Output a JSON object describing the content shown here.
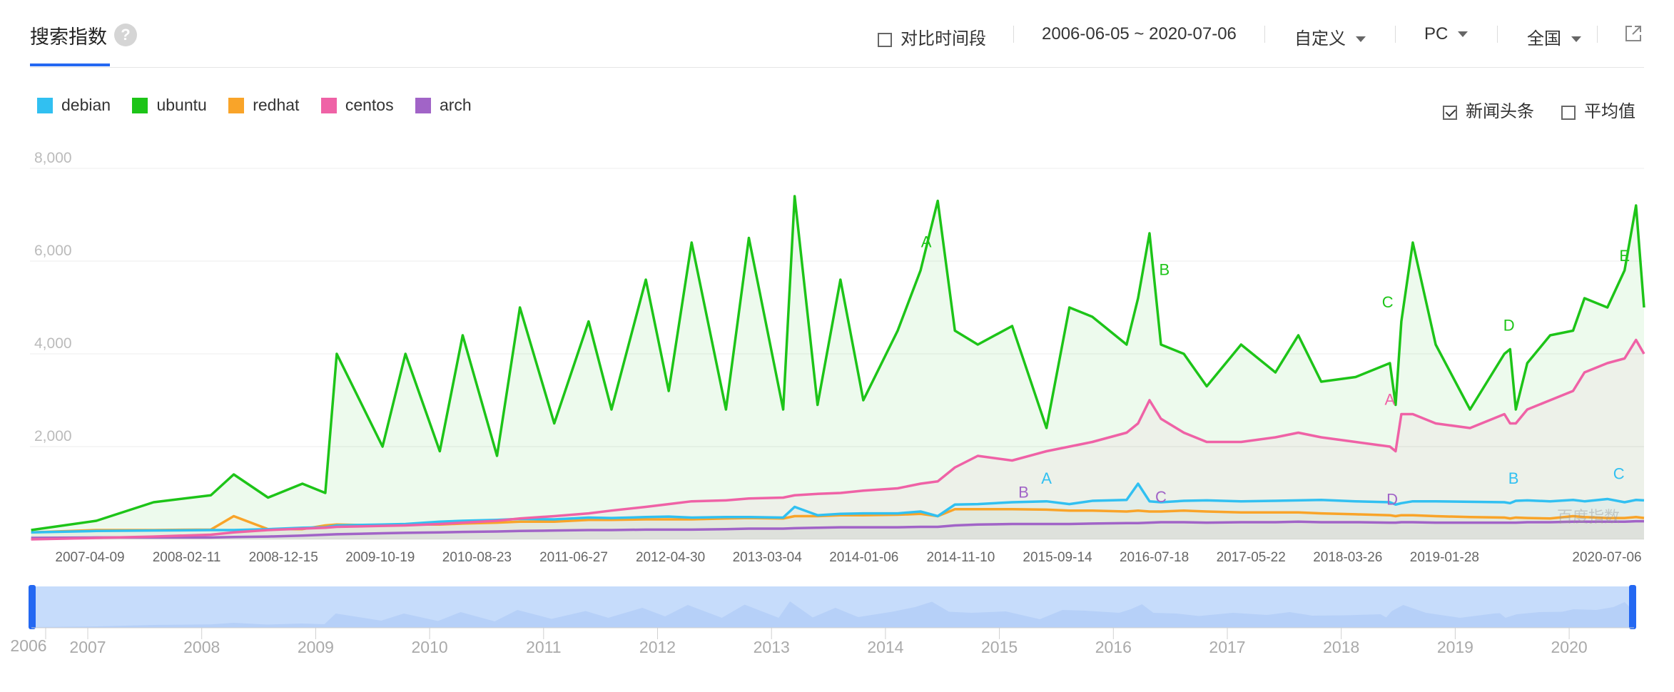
{
  "header": {
    "title": "搜索指数",
    "help_glyph": "?",
    "compare_label": "对比时间段",
    "date_range": "2006-06-05 ~ 2020-07-06",
    "period_select": "自定义",
    "device_select": "PC",
    "region_select": "全国"
  },
  "options": {
    "news_label": "新闻头条",
    "news_checked": true,
    "average_label": "平均值",
    "average_checked": false
  },
  "watermark": "百度指数",
  "chart_data": {
    "type": "line",
    "ylim": [
      0,
      8000
    ],
    "yticks": [
      0,
      2000,
      4000,
      6000,
      8000
    ],
    "ytick_labels": [
      "",
      "2,000",
      "4,000",
      "6,000",
      "8,000"
    ],
    "x_tick_labels": [
      "2007-04-09",
      "2008-02-11",
      "2008-12-15",
      "2009-10-19",
      "2010-08-23",
      "2011-06-27",
      "2012-04-30",
      "2013-03-04",
      "2014-01-06",
      "2014-11-10",
      "2015-09-14",
      "2016-07-18",
      "2017-05-22",
      "2018-03-26",
      "2019-01-28",
      "2020-07-06"
    ],
    "x": [
      2006.43,
      2007.0,
      2007.5,
      2008.0,
      2008.2,
      2008.5,
      2008.8,
      2009.0,
      2009.1,
      2009.5,
      2009.7,
      2010.0,
      2010.2,
      2010.5,
      2010.7,
      2011.0,
      2011.3,
      2011.5,
      2011.8,
      2012.0,
      2012.2,
      2012.5,
      2012.7,
      2013.0,
      2013.1,
      2013.3,
      2013.5,
      2013.7,
      2014.0,
      2014.2,
      2014.35,
      2014.5,
      2014.7,
      2015.0,
      2015.3,
      2015.5,
      2015.7,
      2016.0,
      2016.1,
      2016.2,
      2016.3,
      2016.5,
      2016.7,
      2017.0,
      2017.3,
      2017.5,
      2017.7,
      2018.0,
      2018.3,
      2018.35,
      2018.4,
      2018.5,
      2018.7,
      2019.0,
      2019.3,
      2019.35,
      2019.4,
      2019.5,
      2019.7,
      2019.9,
      2020.0,
      2020.2,
      2020.35,
      2020.45,
      2020.52
    ],
    "series": [
      {
        "name": "debian",
        "color": "#31c0f1",
        "values": [
          150,
          180,
          190,
          200,
          200,
          220,
          250,
          260,
          300,
          320,
          330,
          380,
          400,
          420,
          440,
          430,
          470,
          460,
          480,
          490,
          470,
          480,
          480,
          470,
          700,
          520,
          550,
          560,
          560,
          600,
          500,
          750,
          760,
          800,
          820,
          760,
          830,
          850,
          1200,
          820,
          800,
          830,
          840,
          820,
          830,
          840,
          850,
          820,
          800,
          750,
          780,
          820,
          820,
          810,
          800,
          780,
          830,
          840,
          820,
          850,
          820,
          870,
          800,
          850,
          840
        ]
      },
      {
        "name": "ubuntu",
        "color": "#1dc418",
        "values": [
          200,
          400,
          800,
          950,
          1400,
          900,
          1200,
          1000,
          4000,
          2000,
          4000,
          1900,
          4400,
          1800,
          5000,
          2500,
          4700,
          2800,
          5600,
          3200,
          6400,
          2800,
          6500,
          2800,
          7400,
          2900,
          5600,
          3000,
          4500,
          5800,
          7300,
          4500,
          4200,
          4600,
          2400,
          5000,
          4800,
          4200,
          5200,
          6600,
          4200,
          4000,
          3300,
          4200,
          3600,
          4400,
          3400,
          3500,
          3800,
          2900,
          4700,
          6400,
          4200,
          2800,
          4000,
          4100,
          2800,
          3800,
          4400,
          4500,
          5200,
          5000,
          5800,
          7200,
          5000
        ]
      },
      {
        "name": "redhat",
        "color": "#f9a429",
        "values": [
          150,
          200,
          200,
          210,
          500,
          220,
          220,
          300,
          320,
          300,
          320,
          320,
          340,
          360,
          380,
          380,
          420,
          420,
          430,
          430,
          430,
          450,
          460,
          450,
          500,
          500,
          520,
          520,
          530,
          550,
          500,
          650,
          650,
          650,
          640,
          620,
          620,
          600,
          620,
          600,
          600,
          620,
          600,
          580,
          580,
          580,
          560,
          540,
          520,
          500,
          520,
          520,
          500,
          480,
          470,
          450,
          470,
          460,
          450,
          500,
          480,
          460,
          460,
          480,
          460
        ]
      },
      {
        "name": "centos",
        "color": "#ef62a6",
        "values": [
          0,
          30,
          60,
          100,
          150,
          200,
          230,
          250,
          270,
          290,
          300,
          330,
          360,
          400,
          450,
          500,
          560,
          620,
          700,
          760,
          820,
          840,
          880,
          900,
          950,
          980,
          1000,
          1050,
          1100,
          1200,
          1250,
          1550,
          1800,
          1700,
          1900,
          2000,
          2100,
          2300,
          2500,
          3000,
          2600,
          2300,
          2100,
          2100,
          2200,
          2300,
          2200,
          2100,
          2000,
          1900,
          2700,
          2700,
          2500,
          2400,
          2700,
          2500,
          2500,
          2800,
          3000,
          3200,
          3600,
          3800,
          3900,
          4300,
          4000
        ]
      },
      {
        "name": "arch",
        "color": "#a164c7",
        "values": [
          30,
          40,
          40,
          40,
          50,
          60,
          80,
          100,
          110,
          130,
          140,
          150,
          160,
          170,
          180,
          190,
          200,
          200,
          210,
          210,
          210,
          220,
          230,
          230,
          240,
          250,
          260,
          260,
          260,
          270,
          270,
          300,
          320,
          330,
          330,
          330,
          340,
          350,
          350,
          360,
          370,
          370,
          360,
          370,
          370,
          380,
          370,
          370,
          360,
          360,
          370,
          370,
          360,
          360,
          360,
          360,
          360,
          370,
          370,
          380,
          380,
          380,
          380,
          390,
          390
        ]
      }
    ],
    "annotations": [
      {
        "letter": "A",
        "color": "#1dc418",
        "x": 2014.25,
        "y": 6300
      },
      {
        "letter": "B",
        "color": "#1dc418",
        "x": 2016.33,
        "y": 5700
      },
      {
        "letter": "C",
        "color": "#1dc418",
        "x": 2018.28,
        "y": 5000
      },
      {
        "letter": "D",
        "color": "#1dc418",
        "x": 2019.34,
        "y": 4500
      },
      {
        "letter": "E",
        "color": "#1dc418",
        "x": 2020.35,
        "y": 6000
      },
      {
        "letter": "A",
        "color": "#31c0f1",
        "x": 2015.3,
        "y": 1200
      },
      {
        "letter": "B",
        "color": "#a164c7",
        "x": 2015.1,
        "y": 900
      },
      {
        "letter": "C",
        "color": "#a164c7",
        "x": 2016.3,
        "y": 800
      },
      {
        "letter": "A",
        "color": "#ef62a6",
        "x": 2018.3,
        "y": 2900
      },
      {
        "letter": "D",
        "color": "#a164c7",
        "x": 2018.32,
        "y": 750
      },
      {
        "letter": "B",
        "color": "#31c0f1",
        "x": 2019.38,
        "y": 1200
      },
      {
        "letter": "C",
        "color": "#31c0f1",
        "x": 2020.3,
        "y": 1300
      }
    ],
    "navigator": {
      "year_labels": [
        "2006",
        "2007",
        "2008",
        "2009",
        "2010",
        "2011",
        "2012",
        "2013",
        "2014",
        "2015",
        "2016",
        "2017",
        "2018",
        "2019",
        "2020"
      ]
    }
  }
}
